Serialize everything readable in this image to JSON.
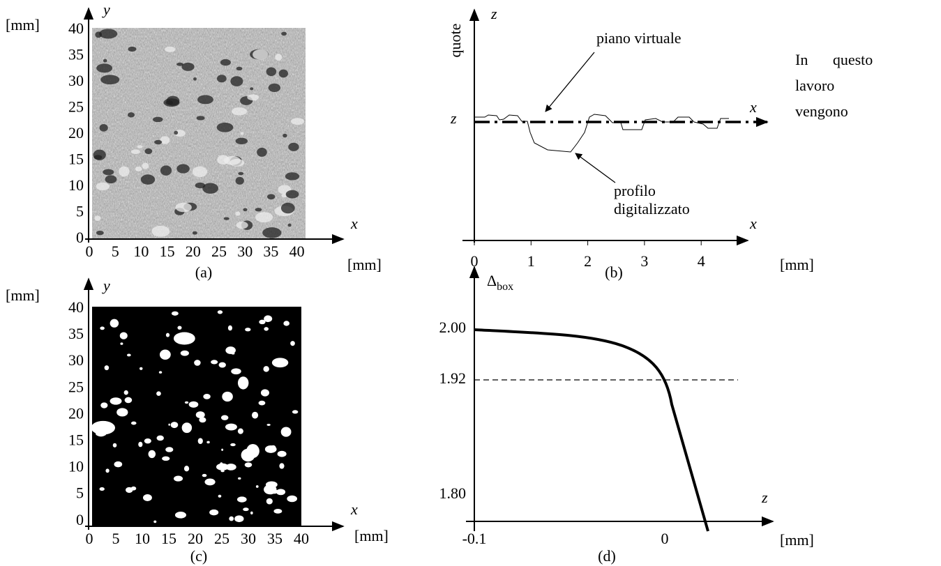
{
  "panels": {
    "a": {
      "unit_y": "[mm]",
      "y_label": "y",
      "x_label": "x",
      "unit_x": "[mm]",
      "caption": "(a)",
      "yticks": [
        "40",
        "35",
        "30",
        "25",
        "20",
        "15",
        "10",
        "5",
        "0"
      ],
      "xticks": [
        "0",
        "5",
        "10",
        "15",
        "20",
        "25",
        "30",
        "35",
        "40"
      ]
    },
    "b": {
      "z_label": "z",
      "y_label": "quote",
      "z_level": "z",
      "x_label": "x",
      "x_label_2": "x",
      "annotation_plane": "piano virtuale",
      "annotation_profile": [
        "profilo",
        "digitalizzato"
      ],
      "xticks": [
        "0",
        "1",
        "2",
        "3",
        "4"
      ],
      "unit": "[mm]",
      "caption": "(b)"
    },
    "c": {
      "unit_y": "[mm]",
      "y_label": "y",
      "x_label": "x",
      "unit_x": "[mm]",
      "caption": "(c)",
      "yticks": [
        "40",
        "35",
        "30",
        "25",
        "20",
        "15",
        "10",
        "5",
        "0"
      ],
      "xticks": [
        "0",
        "5",
        "10",
        "15",
        "20",
        "25",
        "30",
        "35",
        "40"
      ]
    },
    "d": {
      "y_label": "Δ",
      "y_label_sub": "box",
      "yticks": [
        "2.00",
        "1.92",
        "1.80"
      ],
      "x_label": "z",
      "xticks": [
        "-0.1",
        "0"
      ],
      "unit": "[mm]",
      "caption": "(d)"
    }
  },
  "side_text": [
    "In questo",
    "lavoro",
    "vengono"
  ]
}
